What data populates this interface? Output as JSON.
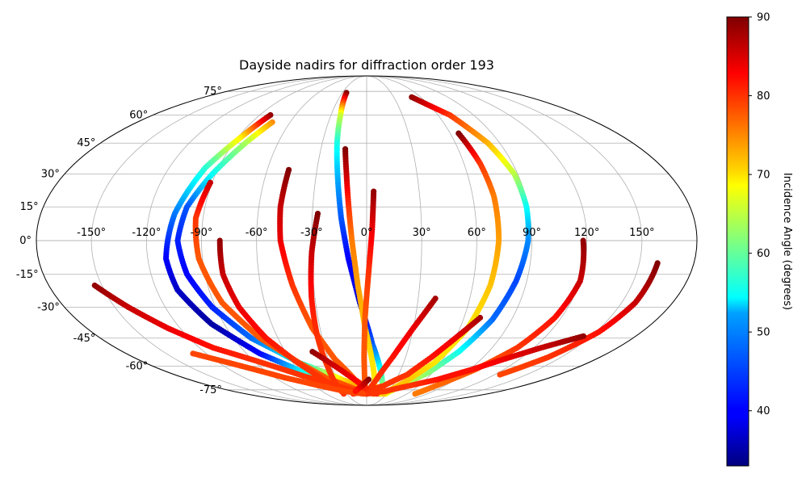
{
  "chart_data": {
    "type": "scatter",
    "projection": "mollweide",
    "title": "Dayside nadirs for diffraction order 193",
    "lon_ticks": [
      -150,
      -120,
      -90,
      -60,
      -30,
      0,
      30,
      60,
      90,
      120,
      150
    ],
    "lon_tick_labels": [
      "-150°",
      "-120°",
      "-90°",
      "-60°",
      "-30°",
      "0°",
      "30°",
      "60°",
      "90°",
      "120°",
      "150°"
    ],
    "lat_ticks": [
      75,
      60,
      45,
      30,
      15,
      0,
      -15,
      -30,
      -45,
      -60,
      -75
    ],
    "lat_tick_labels": [
      "75°",
      "60°",
      "45°",
      "30°",
      "15°",
      "0°",
      "-15°",
      "-30°",
      "-45°",
      "-60°",
      "-75°"
    ],
    "grid": true,
    "colorbar": {
      "label": "Incidence Angle (degrees)",
      "range": [
        33,
        90
      ],
      "ticks": [
        40,
        50,
        60,
        70,
        80,
        90
      ],
      "colormap": "jet",
      "placement": "right"
    },
    "series": [
      {
        "points": [
          [
            -81,
            60,
            89
          ],
          [
            -88,
            48,
            70
          ],
          [
            -98,
            33,
            57
          ],
          [
            -106,
            12,
            47
          ],
          [
            -110,
            -8,
            40
          ],
          [
            -108,
            -22,
            37
          ],
          [
            -98,
            -38,
            35
          ],
          [
            -80,
            -53,
            40
          ],
          [
            -52,
            -66,
            58
          ],
          [
            -22,
            -75,
            70
          ],
          [
            0,
            -78,
            76
          ]
        ]
      },
      {
        "points": [
          [
            -74,
            56,
            75
          ],
          [
            -82,
            45,
            64
          ],
          [
            -92,
            30,
            55
          ],
          [
            -100,
            15,
            45
          ],
          [
            -103,
            0,
            42
          ],
          [
            -100,
            -15,
            40
          ],
          [
            -92,
            -30,
            42
          ],
          [
            -78,
            -45,
            46
          ],
          [
            -55,
            -58,
            55
          ],
          [
            -25,
            -68,
            70
          ],
          [
            5,
            -76,
            78
          ]
        ]
      },
      {
        "points": [
          [
            -91,
            26,
            86
          ],
          [
            -94,
            10,
            80
          ],
          [
            -92,
            -8,
            78
          ],
          [
            -85,
            -28,
            78
          ],
          [
            -72,
            -45,
            78
          ],
          [
            -55,
            -58,
            78
          ],
          [
            -40,
            -67,
            78
          ],
          [
            -10,
            -76,
            79
          ],
          [
            10,
            -78,
            80
          ]
        ]
      },
      {
        "points": [
          [
            -80,
            0,
            89
          ],
          [
            -80,
            -15,
            86
          ],
          [
            -76,
            -30,
            84
          ],
          [
            -68,
            -45,
            82
          ],
          [
            -56,
            -58,
            80
          ],
          [
            -44,
            -68,
            80
          ],
          [
            -30,
            -76,
            79
          ]
        ]
      },
      {
        "points": [
          [
            -47,
            32,
            90
          ],
          [
            -48,
            15,
            86
          ],
          [
            -47,
            0,
            84
          ],
          [
            -42,
            -20,
            80
          ],
          [
            -35,
            -40,
            78
          ],
          [
            -25,
            -56,
            78
          ],
          [
            -12,
            -68,
            78
          ],
          [
            5,
            -76,
            78
          ],
          [
            20,
            -78,
            78
          ]
        ]
      },
      {
        "points": [
          [
            -27,
            12,
            90
          ],
          [
            -30,
            -5,
            86
          ],
          [
            -32,
            -25,
            82
          ],
          [
            -33,
            -45,
            80
          ],
          [
            -33,
            -60,
            80
          ],
          [
            -34,
            -72,
            80
          ],
          [
            -34,
            -78,
            80
          ]
        ]
      },
      {
        "points": [
          [
            -25,
            74,
            90
          ],
          [
            -22,
            60,
            66
          ],
          [
            -20,
            45,
            56
          ],
          [
            -17,
            28,
            50
          ],
          [
            -14,
            10,
            45
          ],
          [
            -10,
            -8,
            40
          ],
          [
            -4,
            -28,
            38
          ],
          [
            4,
            -48,
            45
          ],
          [
            12,
            -62,
            55
          ],
          [
            18,
            -72,
            62
          ],
          [
            22,
            -78,
            68
          ]
        ]
      },
      {
        "points": [
          [
            -14,
            42,
            90
          ],
          [
            -12,
            30,
            86
          ],
          [
            -10,
            15,
            80
          ],
          [
            -8,
            0,
            76
          ],
          [
            -5,
            -20,
            74
          ],
          [
            -1,
            -40,
            72
          ],
          [
            4,
            -56,
            70
          ],
          [
            8,
            -68,
            70
          ],
          [
            10,
            -78,
            70
          ]
        ]
      },
      {
        "points": [
          [
            4,
            22,
            89
          ],
          [
            3,
            5,
            84
          ],
          [
            1,
            -15,
            80
          ],
          [
            -1,
            -35,
            78
          ],
          [
            -2,
            -55,
            78
          ],
          [
            -2,
            -70,
            78
          ],
          [
            -1,
            -78,
            78
          ]
        ]
      },
      {
        "points": [
          [
            50,
            71,
            89
          ],
          [
            70,
            60,
            80
          ],
          [
            82,
            45,
            73
          ],
          [
            88,
            30,
            65
          ],
          [
            89,
            15,
            55
          ],
          [
            88,
            0,
            48
          ],
          [
            84,
            -18,
            44
          ],
          [
            78,
            -36,
            46
          ],
          [
            68,
            -52,
            55
          ],
          [
            56,
            -64,
            62
          ],
          [
            40,
            -72,
            66
          ],
          [
            28,
            -78,
            68
          ]
        ]
      },
      {
        "points": [
          [
            66,
            50,
            90
          ],
          [
            70,
            35,
            80
          ],
          [
            72,
            20,
            76
          ],
          [
            72,
            0,
            74
          ],
          [
            70,
            -20,
            72
          ],
          [
            65,
            -40,
            70
          ],
          [
            55,
            -58,
            70
          ],
          [
            40,
            -70,
            72
          ],
          [
            25,
            -78,
            72
          ]
        ]
      },
      {
        "points": [
          [
            40,
            -26,
            88
          ],
          [
            30,
            -40,
            84
          ],
          [
            20,
            -55,
            82
          ],
          [
            10,
            -68,
            80
          ],
          [
            0,
            -78,
            80
          ]
        ]
      },
      {
        "points": [
          [
            70,
            -35,
            88
          ],
          [
            60,
            -45,
            84
          ],
          [
            50,
            -55,
            82
          ],
          [
            38,
            -65,
            80
          ],
          [
            20,
            -72,
            80
          ],
          [
            0,
            -76,
            80
          ],
          [
            -20,
            -78,
            80
          ]
        ]
      },
      {
        "points": [
          [
            118,
            0,
            89
          ],
          [
            120,
            -18,
            86
          ],
          [
            116,
            -35,
            82
          ],
          [
            108,
            -50,
            80
          ],
          [
            95,
            -62,
            78
          ],
          [
            80,
            -72,
            77
          ],
          [
            72,
            -78,
            76
          ]
        ]
      },
      {
        "points": [
          [
            160,
            -10,
            90
          ],
          [
            158,
            -28,
            86
          ],
          [
            152,
            -42,
            82
          ],
          [
            140,
            -55,
            80
          ],
          [
            125,
            -65,
            79
          ]
        ]
      },
      {
        "points": [
          [
            145,
            -44,
            89
          ],
          [
            125,
            -50,
            86
          ],
          [
            108,
            -56,
            84
          ],
          [
            92,
            -62,
            82
          ],
          [
            72,
            -68,
            82
          ],
          [
            50,
            -72,
            80
          ],
          [
            25,
            -76,
            80
          ],
          [
            0,
            -78,
            80
          ]
        ]
      },
      {
        "points": [
          [
            -154,
            -20,
            89
          ],
          [
            -142,
            -30,
            86
          ],
          [
            -128,
            -40,
            84
          ],
          [
            -110,
            -50,
            82
          ],
          [
            -85,
            -58,
            80
          ],
          [
            -60,
            -66,
            80
          ],
          [
            -35,
            -72,
            80
          ],
          [
            -10,
            -77,
            80
          ],
          [
            15,
            -78,
            80
          ]
        ]
      },
      {
        "points": [
          [
            -130,
            -53,
            79
          ],
          [
            -105,
            -60,
            79
          ],
          [
            -80,
            -67,
            79
          ],
          [
            -55,
            -72,
            79
          ],
          [
            -30,
            -76,
            79
          ],
          [
            -5,
            -78,
            79
          ]
        ]
      },
      {
        "points": [
          [
            -40,
            -52,
            89
          ],
          [
            -30,
            -58,
            86
          ],
          [
            -18,
            -65,
            84
          ],
          [
            -5,
            -72,
            82
          ],
          [
            5,
            -77,
            80
          ]
        ]
      },
      {
        "points": [
          [
            2,
            -68,
            90
          ],
          [
            -5,
            -72,
            86
          ],
          [
            -15,
            -76,
            82
          ]
        ]
      }
    ]
  }
}
